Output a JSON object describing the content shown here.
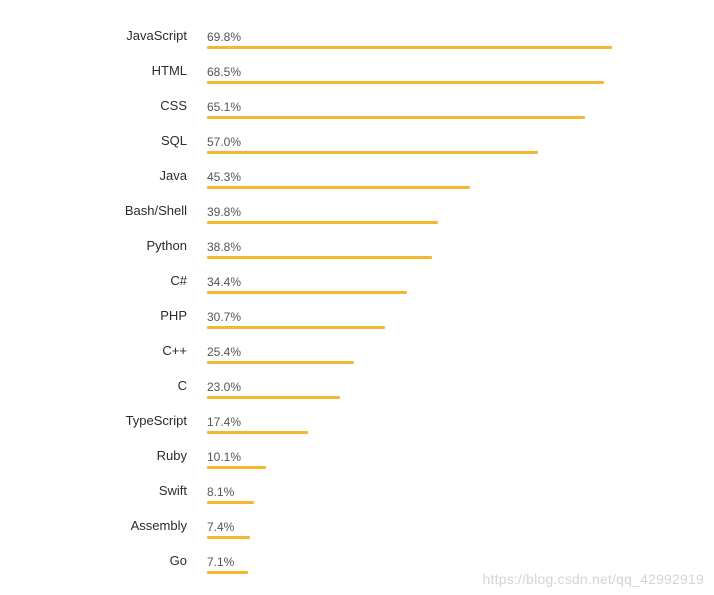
{
  "chart_data": {
    "type": "bar",
    "orientation": "horizontal",
    "title": "",
    "xlabel": "",
    "ylabel": "",
    "xlim": [
      0,
      70
    ],
    "grid": false,
    "bar_color": "#f4b531",
    "categories": [
      "JavaScript",
      "HTML",
      "CSS",
      "SQL",
      "Java",
      "Bash/Shell",
      "Python",
      "C#",
      "PHP",
      "C++",
      "C",
      "TypeScript",
      "Ruby",
      "Swift",
      "Assembly",
      "Go"
    ],
    "values": [
      69.8,
      68.5,
      65.1,
      57.0,
      45.3,
      39.8,
      38.8,
      34.4,
      30.7,
      25.4,
      23.0,
      17.4,
      10.1,
      8.1,
      7.4,
      7.1
    ],
    "value_labels": [
      "69.8%",
      "68.5%",
      "65.1%",
      "57.0%",
      "45.3%",
      "39.8%",
      "38.8%",
      "34.4%",
      "30.7%",
      "25.4%",
      "23.0%",
      "17.4%",
      "10.1%",
      "8.1%",
      "7.4%",
      "7.1%"
    ]
  },
  "watermark": {
    "text": "https://blog.csdn.net/qq_42992919"
  }
}
